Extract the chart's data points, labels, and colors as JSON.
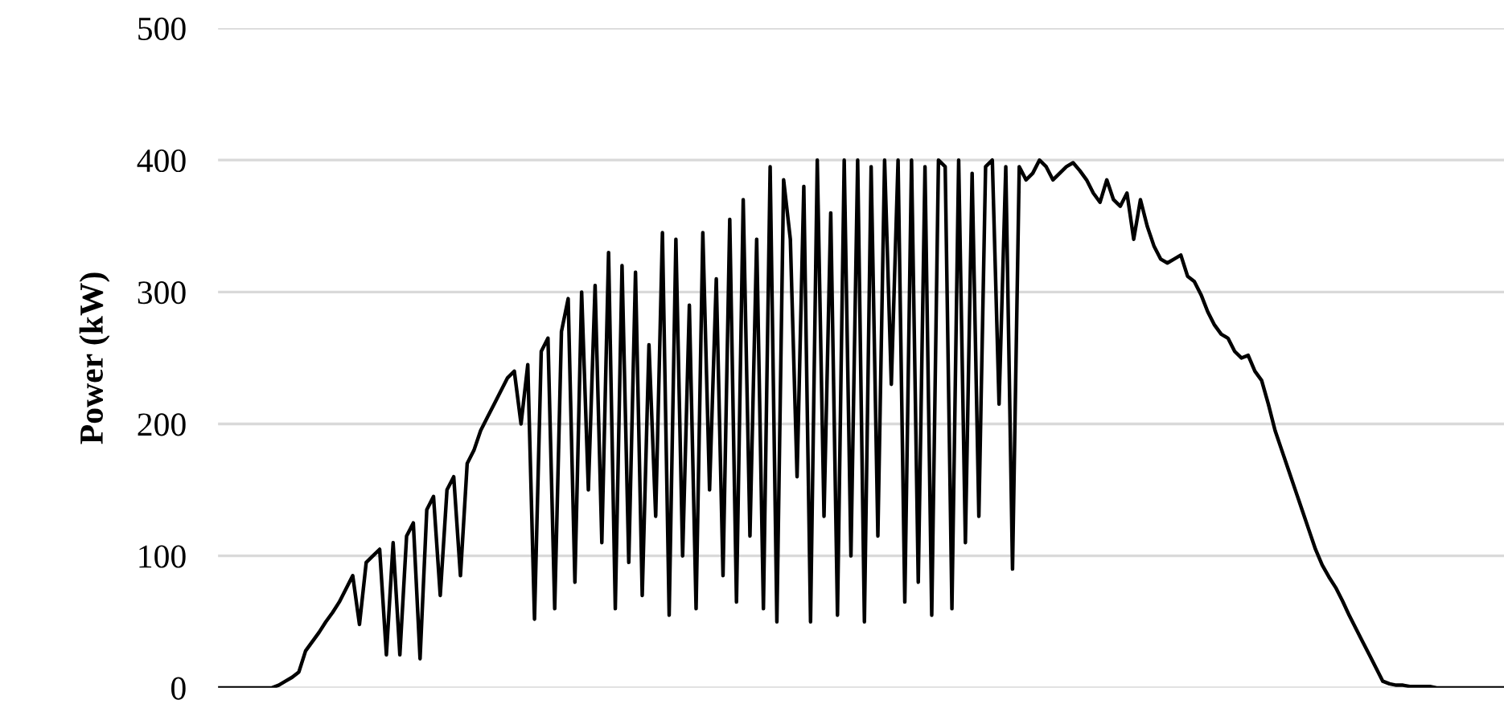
{
  "chart_data": {
    "type": "line",
    "ylabel": "Power (kW)",
    "categories": [
      null,
      null,
      null,
      null,
      null,
      null,
      null,
      null,
      null,
      null,
      null,
      null,
      null,
      null,
      null,
      null,
      null,
      null,
      null,
      null,
      null,
      null,
      null,
      null,
      null,
      null,
      null,
      null,
      null,
      null,
      null,
      null,
      null,
      null,
      null,
      null,
      null,
      null,
      null,
      null,
      null,
      null,
      null,
      null,
      null,
      null,
      null,
      null,
      null,
      null,
      null,
      null,
      null,
      null,
      null,
      null,
      null,
      null,
      null,
      null,
      null,
      null,
      null,
      null,
      null,
      null,
      null,
      null,
      null,
      null,
      null,
      null,
      null,
      null,
      null,
      null,
      null,
      null,
      null,
      null,
      null,
      null,
      null,
      null,
      null,
      null,
      null,
      null,
      null,
      null,
      null,
      null,
      null,
      null,
      null,
      null,
      null,
      null,
      null,
      null,
      null,
      null,
      null,
      null,
      null,
      null,
      null,
      null,
      null,
      null,
      null,
      null,
      null,
      null,
      null,
      null,
      null,
      null,
      null,
      null,
      null,
      null,
      null,
      null,
      null,
      null,
      null,
      null,
      null,
      null,
      null,
      null,
      null,
      null,
      null,
      null,
      null,
      null,
      null,
      null,
      null,
      null,
      null,
      null,
      null,
      null,
      null,
      null,
      null,
      null,
      null,
      null,
      null,
      null,
      null,
      null,
      null,
      null,
      null,
      null,
      null,
      null,
      null,
      null,
      null,
      null,
      null,
      null,
      null,
      null,
      null,
      null,
      null,
      null,
      null,
      null,
      null,
      null,
      null,
      null,
      null,
      null,
      null,
      null,
      null,
      null,
      null,
      null,
      null,
      null,
      null,
      null
    ],
    "series": [
      {
        "color": "#000000",
        "values": [
          0,
          0,
          0,
          0,
          0,
          0,
          0,
          0,
          0,
          2,
          5,
          8,
          12,
          28,
          35,
          42,
          50,
          57,
          65,
          75,
          85,
          48,
          95,
          100,
          105,
          25,
          110,
          25,
          115,
          125,
          22,
          135,
          145,
          70,
          150,
          160,
          85,
          170,
          180,
          195,
          205,
          215,
          225,
          235,
          240,
          200,
          245,
          52,
          255,
          265,
          60,
          270,
          295,
          80,
          300,
          150,
          305,
          110,
          330,
          60,
          320,
          95,
          315,
          70,
          260,
          130,
          345,
          55,
          340,
          100,
          290,
          60,
          345,
          150,
          310,
          85,
          355,
          65,
          370,
          115,
          340,
          60,
          395,
          50,
          385,
          340,
          160,
          380,
          50,
          400,
          130,
          360,
          55,
          400,
          100,
          400,
          50,
          395,
          115,
          400,
          230,
          400,
          65,
          400,
          80,
          395,
          55,
          400,
          395,
          60,
          400,
          110,
          390,
          130,
          395,
          400,
          215,
          395,
          90,
          395,
          385,
          390,
          400,
          395,
          385,
          390,
          395,
          398,
          392,
          385,
          375,
          368,
          385,
          370,
          365,
          375,
          340,
          370,
          350,
          335,
          325,
          322,
          325,
          328,
          312,
          308,
          298,
          285,
          275,
          268,
          265,
          255,
          250,
          252,
          240,
          233,
          215,
          195,
          180,
          165,
          150,
          135,
          120,
          105,
          93,
          84,
          76,
          66,
          55,
          45,
          35,
          25,
          15,
          5,
          3,
          2,
          2,
          1,
          1,
          1,
          1,
          0,
          0,
          0,
          0,
          0,
          0,
          0,
          0,
          0,
          0,
          0
        ]
      }
    ],
    "ylim": [
      0,
      500
    ],
    "yticks": [
      0,
      100,
      200,
      300,
      400,
      500
    ],
    "grid": "y",
    "legend": false,
    "tick_labels": "y",
    "marker": "none",
    "line_style": "solid"
  }
}
